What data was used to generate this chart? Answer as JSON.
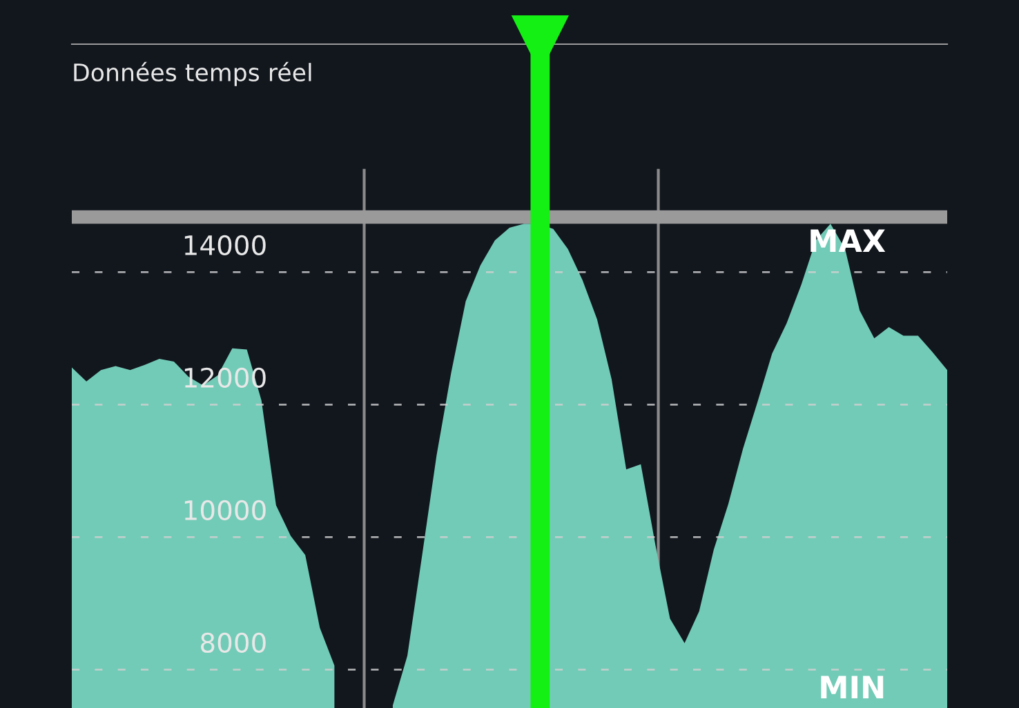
{
  "chart_data": {
    "type": "area",
    "title": "Données temps réel",
    "categories": [
      null,
      null,
      null,
      null,
      null,
      null,
      null,
      null,
      null,
      null,
      null,
      null,
      null,
      null,
      null,
      null,
      null,
      null,
      null,
      null,
      null,
      null,
      null,
      null,
      null,
      null,
      null,
      null,
      null,
      null,
      null,
      null,
      null,
      null,
      null,
      null,
      null,
      null,
      null,
      null,
      null,
      null,
      null,
      null,
      null,
      null,
      null,
      null,
      null,
      null,
      null,
      null,
      null,
      null,
      null,
      null,
      null,
      null,
      null,
      null,
      null
    ],
    "series": [
      {
        "color": "#72cbb7",
        "values": [
          12560,
          12350,
          12520,
          12580,
          12520,
          12600,
          12690,
          12650,
          12420,
          12290,
          12440,
          12850,
          12830,
          12060,
          10480,
          10020,
          9730,
          8630,
          8060,
          null,
          null,
          null,
          null,
          null,
          null,
          null,
          null,
          null,
          null,
          null,
          null,
          null,
          null,
          null,
          null,
          null,
          null,
          null,
          null,
          null,
          null,
          null,
          null,
          null,
          null,
          null,
          null,
          null,
          null,
          null,
          null,
          null,
          null,
          null,
          null,
          null,
          null,
          null,
          null,
          null,
          null
        ]
      },
      {
        "color": "#72cbb7",
        "values": [
          null,
          null,
          null,
          null,
          null,
          null,
          null,
          null,
          null,
          null,
          null,
          null,
          null,
          null,
          null,
          null,
          null,
          null,
          null,
          null,
          null,
          null,
          7460,
          8210,
          9710,
          11230,
          12480,
          13560,
          14100,
          14480,
          14670,
          14730,
          14730,
          14650,
          14350,
          13880,
          13290,
          12380,
          11020,
          11100,
          9880,
          8770,
          8400,
          8880,
          9810,
          10500,
          11330,
          12040,
          12770,
          13230,
          13810,
          14480,
          14730,
          14350,
          13420,
          13000,
          13170,
          13040,
          13040,
          12790,
          12520
        ]
      }
    ],
    "ylim": [
      7420,
      17440
    ],
    "yticks": [
      8000,
      10000,
      12000,
      14000
    ],
    "grid": "y",
    "tick_labels": "y",
    "ref_lines": [
      {
        "axis": "y",
        "value": 14830,
        "label": "MAX",
        "color": "#9a9a9a",
        "line_style": "solid"
      }
    ],
    "annotations": [
      "MIN"
    ]
  }
}
